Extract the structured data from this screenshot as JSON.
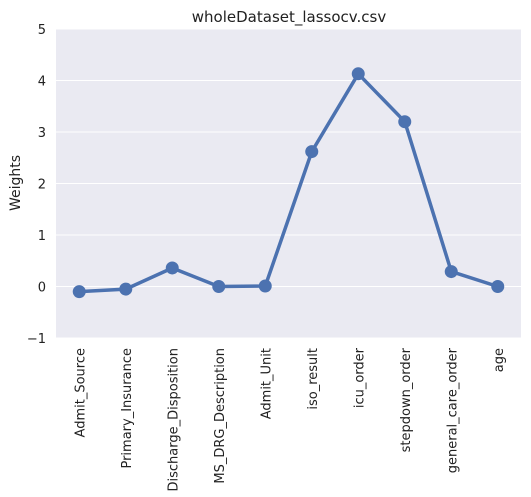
{
  "chart_data": {
    "type": "line",
    "title": "wholeDataset_lassocv.csv",
    "xlabel": "",
    "ylabel": "Weights",
    "categories": [
      "Admit_Source",
      "Primary_Insurance",
      "Discharge_Disposition",
      "MS_DRG_Description",
      "Admit_Unit",
      "iso_result",
      "icu_order",
      "stepdown_order",
      "general_care_order",
      "age"
    ],
    "series": [
      {
        "values": [
          -0.1,
          -0.05,
          0.36,
          0.0,
          0.01,
          2.62,
          4.13,
          3.2,
          0.29,
          0.0
        ]
      }
    ],
    "ylim": [
      -1,
      5
    ],
    "yticks": [
      "−1",
      "0",
      "1",
      "2",
      "3",
      "4",
      "5"
    ],
    "grid": true,
    "colors": {
      "line": "#4c72b0",
      "background": "#eaeaf2",
      "grid": "#ffffff"
    }
  }
}
